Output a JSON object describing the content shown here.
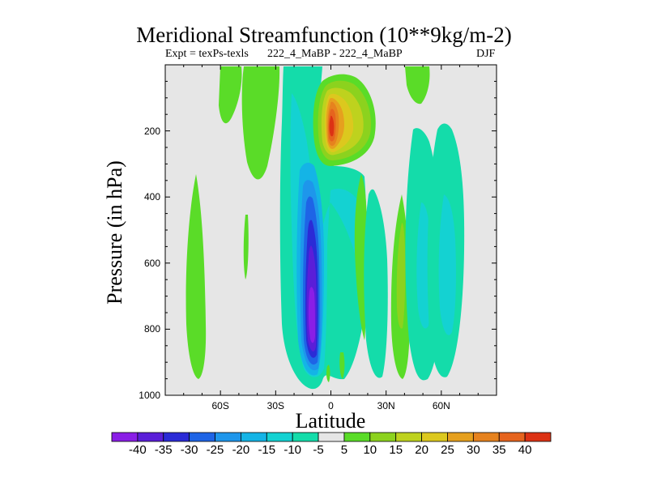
{
  "chart_data": {
    "type": "contour",
    "title": "Meridional Streamfunction (10**9kg/m-2)",
    "subtitle_left": "Expt = texPs-texls",
    "subtitle_center": "222_4_MaBP - 222_4_MaBP",
    "subtitle_right": "DJF",
    "xlabel": "Latitude",
    "ylabel": "Pressure (in hPa)",
    "x_ticks": [
      {
        "value": -60,
        "label": "60S"
      },
      {
        "value": -30,
        "label": "30S"
      },
      {
        "value": 0,
        "label": "0"
      },
      {
        "value": 30,
        "label": "30N"
      },
      {
        "value": 60,
        "label": "60N"
      }
    ],
    "y_ticks": [
      {
        "value": 200,
        "label": "200"
      },
      {
        "value": 400,
        "label": "400"
      },
      {
        "value": 600,
        "label": "600"
      },
      {
        "value": 800,
        "label": "800"
      },
      {
        "value": 1000,
        "label": "1000"
      }
    ],
    "xlim": [
      -90,
      90
    ],
    "ylim": [
      0,
      1000
    ],
    "contour_levels": [
      -40,
      -35,
      -30,
      -25,
      -20,
      -15,
      -10,
      -5,
      5,
      10,
      15,
      20,
      25,
      30,
      35,
      40
    ],
    "colorbar_colors": [
      "#8a1ee6",
      "#5a1ed8",
      "#2b2bd6",
      "#1e64e6",
      "#1e96eb",
      "#14b4e6",
      "#14d2d2",
      "#14dcaa",
      "#e6e6e6",
      "#5adc28",
      "#8cd21e",
      "#bed21e",
      "#dcc81e",
      "#e6a01e",
      "#e6821e",
      "#e6641e",
      "#dc3214"
    ],
    "background_color": "#e6e6e6",
    "features": [
      {
        "name": "sh-tropical-negative-cell",
        "lat": -10,
        "p": 750,
        "value": -40
      },
      {
        "name": "upper-positive-cell",
        "lat": 0,
        "p": 180,
        "value": 40
      },
      {
        "name": "ne-positive-band",
        "lat": 20,
        "p": 350,
        "value": 15
      },
      {
        "name": "sh-midlat-positive-band",
        "lat": -75,
        "p": 650,
        "value": 10
      },
      {
        "name": "nh-midlat-negative-band",
        "lat": 60,
        "p": 550,
        "value": -10
      },
      {
        "name": "nh-positive-band",
        "lat": 40,
        "p": 600,
        "value": 10
      }
    ]
  }
}
